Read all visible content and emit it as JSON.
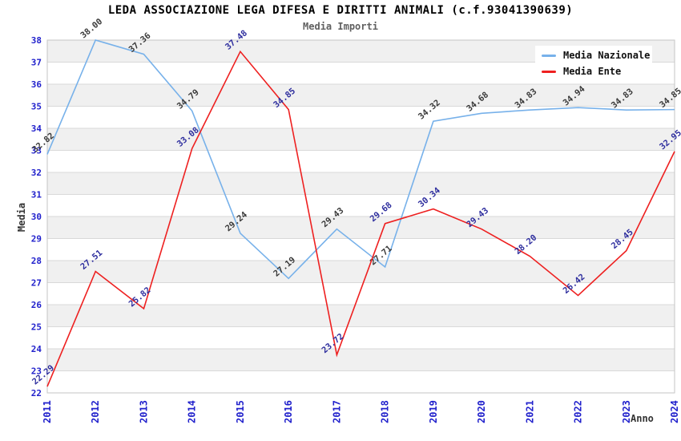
{
  "header": {
    "title": "LEDA ASSOCIAZIONE LEGA DIFESA E DIRITTI ANIMALI (c.f.93041390639)",
    "subtitle": "Media Importi"
  },
  "colors": {
    "band_gray": "#f0f0f0",
    "grid_line": "#d9d9d9",
    "plot_border": "#c5c5c5",
    "tick_label_blue": "#2121cc",
    "title_black": "#000000",
    "subtitle_gray": "#606060",
    "axis_title_dark": "#333333"
  },
  "chart_data": {
    "type": "line",
    "title": "LEDA ASSOCIAZIONE LEGA DIFESA E DIRITTI ANIMALI (c.f.93041390639)",
    "subtitle": "Media Importi",
    "xlabel": "Anno",
    "ylabel": "Media",
    "x": [
      2011,
      2012,
      2013,
      2014,
      2015,
      2016,
      2017,
      2018,
      2019,
      2020,
      2021,
      2022,
      2023,
      2024
    ],
    "series": [
      {
        "name": "Media Nazionale",
        "color": "#77b1ea",
        "label_color": "#3a3a3a",
        "values": [
          32.82,
          38.0,
          37.36,
          34.79,
          29.24,
          27.19,
          29.43,
          27.71,
          34.32,
          34.68,
          34.83,
          34.94,
          34.83,
          34.85
        ]
      },
      {
        "name": "Media Ente",
        "color": "#ee2020",
        "label_color": "#2e2e9e",
        "values": [
          22.29,
          27.51,
          25.82,
          33.08,
          37.48,
          34.85,
          23.72,
          29.68,
          30.34,
          29.43,
          28.2,
          26.42,
          28.45,
          32.95
        ]
      }
    ],
    "ylim": [
      22,
      38
    ],
    "ytick_step": 1,
    "grid": true,
    "band_striping": "horizontal-alternating",
    "legend_position": "top-right",
    "point_labels_decimals": 2
  }
}
